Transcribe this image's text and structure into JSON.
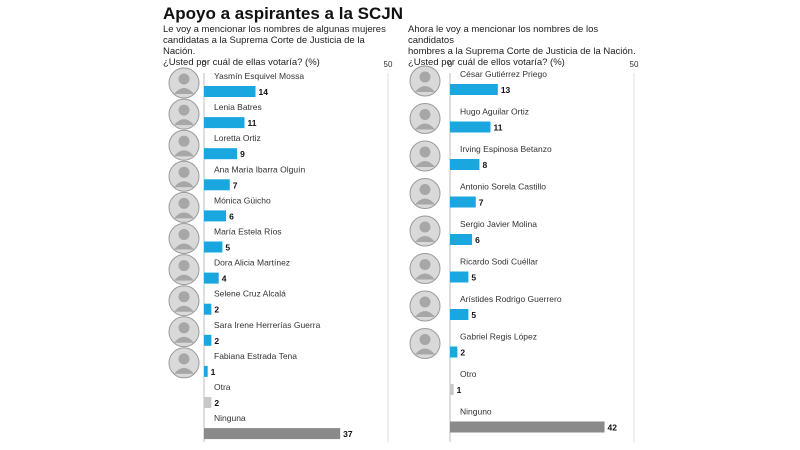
{
  "title": "Apoyo a aspirantes a la SCJN",
  "colors": {
    "bar": "#1aa7e0",
    "bar_other": "#c8c8c8",
    "bar_none": "#8a8a8a",
    "axis": "#bdbdbd"
  },
  "chart_data": [
    {
      "type": "bar",
      "orientation": "horizontal",
      "subtitle_lines": [
        "Le voy a mencionar los nombres de algunas mujeres",
        "candidatas a la Suprema Corte de Justicia de la Nación.",
        "¿Usted por cuál de ellas votaría? (%)"
      ],
      "xlim": [
        0,
        50
      ],
      "ticks": [
        "0",
        "50"
      ],
      "categories": [
        "Yasmín Esquivel Mossa",
        "Lenia Batres",
        "Loretta Ortiz",
        "Ana María Ibarra Olguín",
        "Mónica Güicho",
        "María Estela Ríos",
        "Dora Alicia Martínez",
        "Selene Cruz Alcalá",
        "Sara Irene Herrerías Guerra",
        "Fabiana Estrada Tena",
        "Otra",
        "Ninguna"
      ],
      "values": [
        14,
        11,
        9,
        7,
        6,
        5,
        4,
        2,
        2,
        1,
        2,
        37
      ],
      "labels": [
        "14",
        "11",
        "9",
        "7",
        "6",
        "5",
        "4",
        "2",
        "2",
        "1",
        "2",
        "37"
      ],
      "kinds": [
        "person",
        "person",
        "person",
        "person",
        "person",
        "person",
        "person",
        "person",
        "person",
        "person",
        "other",
        "none"
      ]
    },
    {
      "type": "bar",
      "orientation": "horizontal",
      "subtitle_lines": [
        "Ahora le voy a mencionar los nombres de los candidatos",
        "hombres a la Suprema Corte de Justicia de la Nación.",
        "¿Usted por cuál de ellos votaría? (%)"
      ],
      "xlim": [
        0,
        50
      ],
      "ticks": [
        "0",
        "50"
      ],
      "categories": [
        "César Gutiérrez Priego",
        "Hugo Aguilar Ortiz",
        "Irving Espinosa Betanzo",
        "Antonio Sorela Castillo",
        "Sergio Javier Molina",
        "Ricardo Sodi Cuéllar",
        "Arístides Rodrigo Guerrero",
        "Gabriel Regis López",
        "Otro",
        "Ninguno"
      ],
      "values": [
        13,
        11,
        8,
        7,
        6,
        5,
        5,
        2,
        1,
        42
      ],
      "labels": [
        "13",
        "11",
        "8",
        "7",
        "6",
        "5",
        "5",
        "2",
        "1",
        "42"
      ],
      "kinds": [
        "person",
        "person",
        "person",
        "person",
        "person",
        "person",
        "person",
        "person",
        "other",
        "none"
      ]
    }
  ]
}
